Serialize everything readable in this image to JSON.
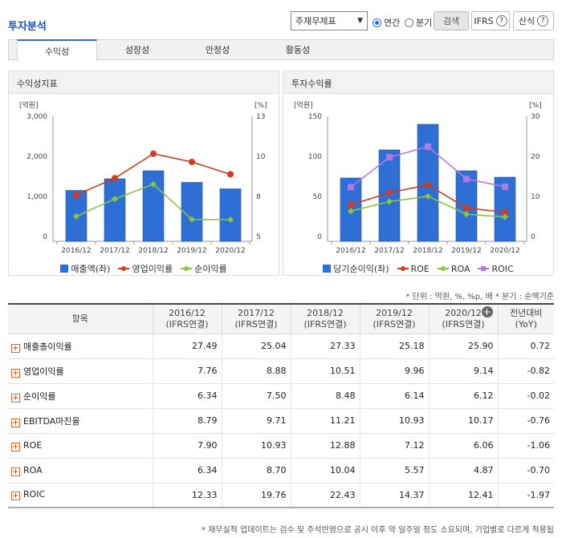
{
  "header": {
    "title": "투자분석",
    "select_value": "주재무제표",
    "radio_year": "연간",
    "radio_quarter": "분기",
    "search_label": "검색",
    "ifrs_label": "IFRS",
    "calc_label": "산식"
  },
  "tabs": [
    "수익성",
    "성장성",
    "안정성",
    "활동성"
  ],
  "colors": {
    "bar": "#2e6fd6",
    "op": "#d03a1e",
    "net": "#8ac53a",
    "roic": "#b07ae0",
    "accent": "#1a53c6",
    "negative": "#d01616"
  },
  "chart_data": [
    {
      "type": "bar+line",
      "title": "수익성지표",
      "categories": [
        "2016/12",
        "2017/12",
        "2018/12",
        "2019/12",
        "2020/12"
      ],
      "left_axis": {
        "unit": "[억원]",
        "min": 0,
        "max": 3000,
        "ticks": [
          "0",
          "1,000",
          "2,000",
          "3,000"
        ]
      },
      "right_axis": {
        "unit": "[%]",
        "min": 5,
        "max": 13,
        "ticks": [
          "5",
          "8",
          "10",
          "13"
        ]
      },
      "series": [
        {
          "name": "매출액(좌)",
          "kind": "bar",
          "axis": "left",
          "values": [
            1150,
            1440,
            1640,
            1350,
            1190
          ]
        },
        {
          "name": "영업이익률",
          "kind": "line",
          "axis": "right",
          "values": [
            7.76,
            8.88,
            10.51,
            9.96,
            9.14
          ]
        },
        {
          "name": "순이익률",
          "kind": "line",
          "axis": "right",
          "values": [
            6.34,
            7.5,
            8.48,
            6.14,
            6.12
          ]
        }
      ]
    },
    {
      "type": "bar+line",
      "title": "투자수익률",
      "categories": [
        "2016/12",
        "2017/12",
        "2018/12",
        "2019/12",
        "2020/12"
      ],
      "left_axis": {
        "unit": "[억원]",
        "min": 0,
        "max": 150,
        "ticks": [
          "0",
          "50",
          "100",
          "150"
        ]
      },
      "right_axis": {
        "unit": "[%]",
        "min": 0,
        "max": 30,
        "ticks": [
          "0",
          "10",
          "20",
          "30"
        ]
      },
      "series": [
        {
          "name": "당기순이익(좌)",
          "kind": "bar",
          "axis": "left",
          "values": [
            73,
            108,
            140,
            82,
            74
          ]
        },
        {
          "name": "ROE",
          "kind": "line",
          "axis": "right",
          "values": [
            7.9,
            10.93,
            12.88,
            7.12,
            6.06
          ]
        },
        {
          "name": "ROA",
          "kind": "line",
          "axis": "right",
          "values": [
            6.34,
            8.7,
            10.04,
            5.57,
            4.87
          ]
        },
        {
          "name": "ROIC",
          "kind": "line",
          "axis": "right",
          "values": [
            12.33,
            19.76,
            22.43,
            14.37,
            12.41
          ]
        }
      ]
    }
  ],
  "note": "* 단위 : 억원, %, %p, 배   * 분기 : 순액기준",
  "table": {
    "item_header": "항목",
    "periods": [
      {
        "date": "2016/12",
        "basis": "(IFRS연결)"
      },
      {
        "date": "2017/12",
        "basis": "(IFRS연결)"
      },
      {
        "date": "2018/12",
        "basis": "(IFRS연결)"
      },
      {
        "date": "2019/12",
        "basis": "(IFRS연결)"
      },
      {
        "date": "2020/12",
        "basis": "(IFRS연결)"
      }
    ],
    "yoy_header": [
      "전년대비",
      "(YoY)"
    ],
    "rows": [
      {
        "label": "매출총이익률",
        "values": [
          "27.49",
          "25.04",
          "27.33",
          "25.18",
          "25.90"
        ],
        "yoy": "0.72"
      },
      {
        "label": "영업이익률",
        "values": [
          "7.76",
          "8.88",
          "10.51",
          "9.96",
          "9.14"
        ],
        "yoy": "-0.82"
      },
      {
        "label": "순이익률",
        "values": [
          "6.34",
          "7.50",
          "8.48",
          "6.14",
          "6.12"
        ],
        "yoy": "-0.02"
      },
      {
        "label": "EBITDA마진율",
        "values": [
          "8.79",
          "9.71",
          "11.21",
          "10.93",
          "10.17"
        ],
        "yoy": "-0.76"
      },
      {
        "label": "ROE",
        "values": [
          "7.90",
          "10.93",
          "12.88",
          "7.12",
          "6.06"
        ],
        "yoy": "-1.06"
      },
      {
        "label": "ROA",
        "values": [
          "6.34",
          "8.70",
          "10.04",
          "5.57",
          "4.87"
        ],
        "yoy": "-0.70"
      },
      {
        "label": "ROIC",
        "values": [
          "12.33",
          "19.76",
          "22.43",
          "14.37",
          "12.41"
        ],
        "yoy": "-1.97"
      }
    ]
  },
  "footnote": "* 재무실적 업데이트는 검수 및 주석반영으로 공시 이후 약 일주일 정도 소요되며, 기업별로 다르게 적용됩"
}
